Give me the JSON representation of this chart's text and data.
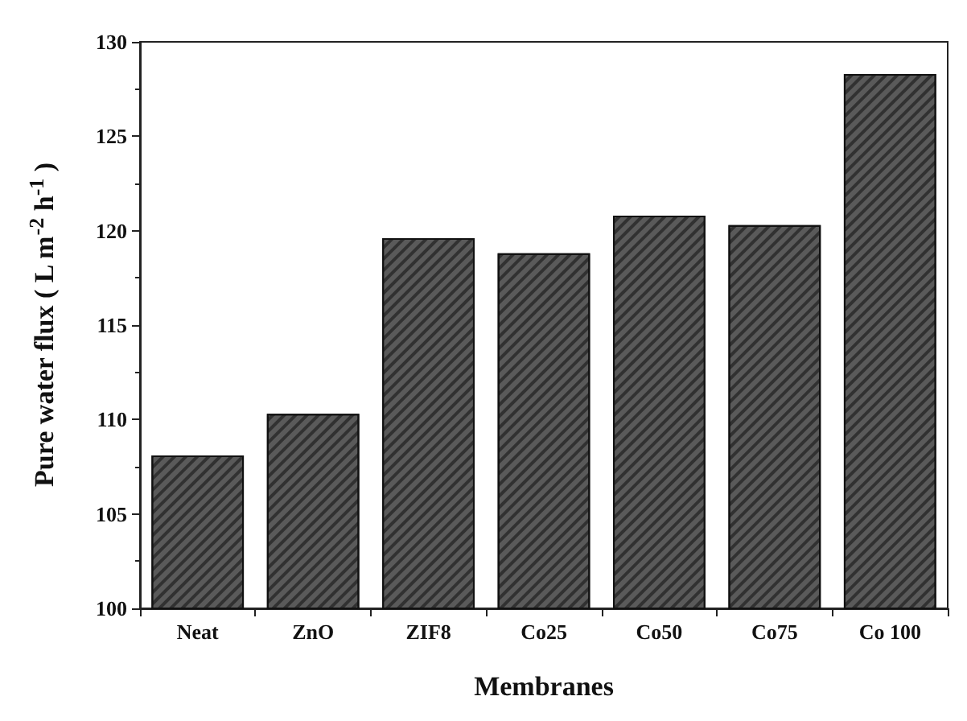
{
  "chart_data": {
    "type": "bar",
    "xlabel": "Membranes",
    "ylabel": "Pure water flux ( L m$^{-2}$ h$^{-1}$ )",
    "categories": [
      "Neat",
      "ZnO",
      "ZIF8",
      "Co25",
      "Co50",
      "Co75",
      "Co 100"
    ],
    "values": [
      108.1,
      110.3,
      119.6,
      118.8,
      120.8,
      120.3,
      128.3
    ],
    "color": "#5a5a5a",
    "ylim": [
      100,
      130
    ],
    "yticks": [
      100,
      105,
      110,
      115,
      120,
      125,
      130
    ],
    "grid": false
  }
}
